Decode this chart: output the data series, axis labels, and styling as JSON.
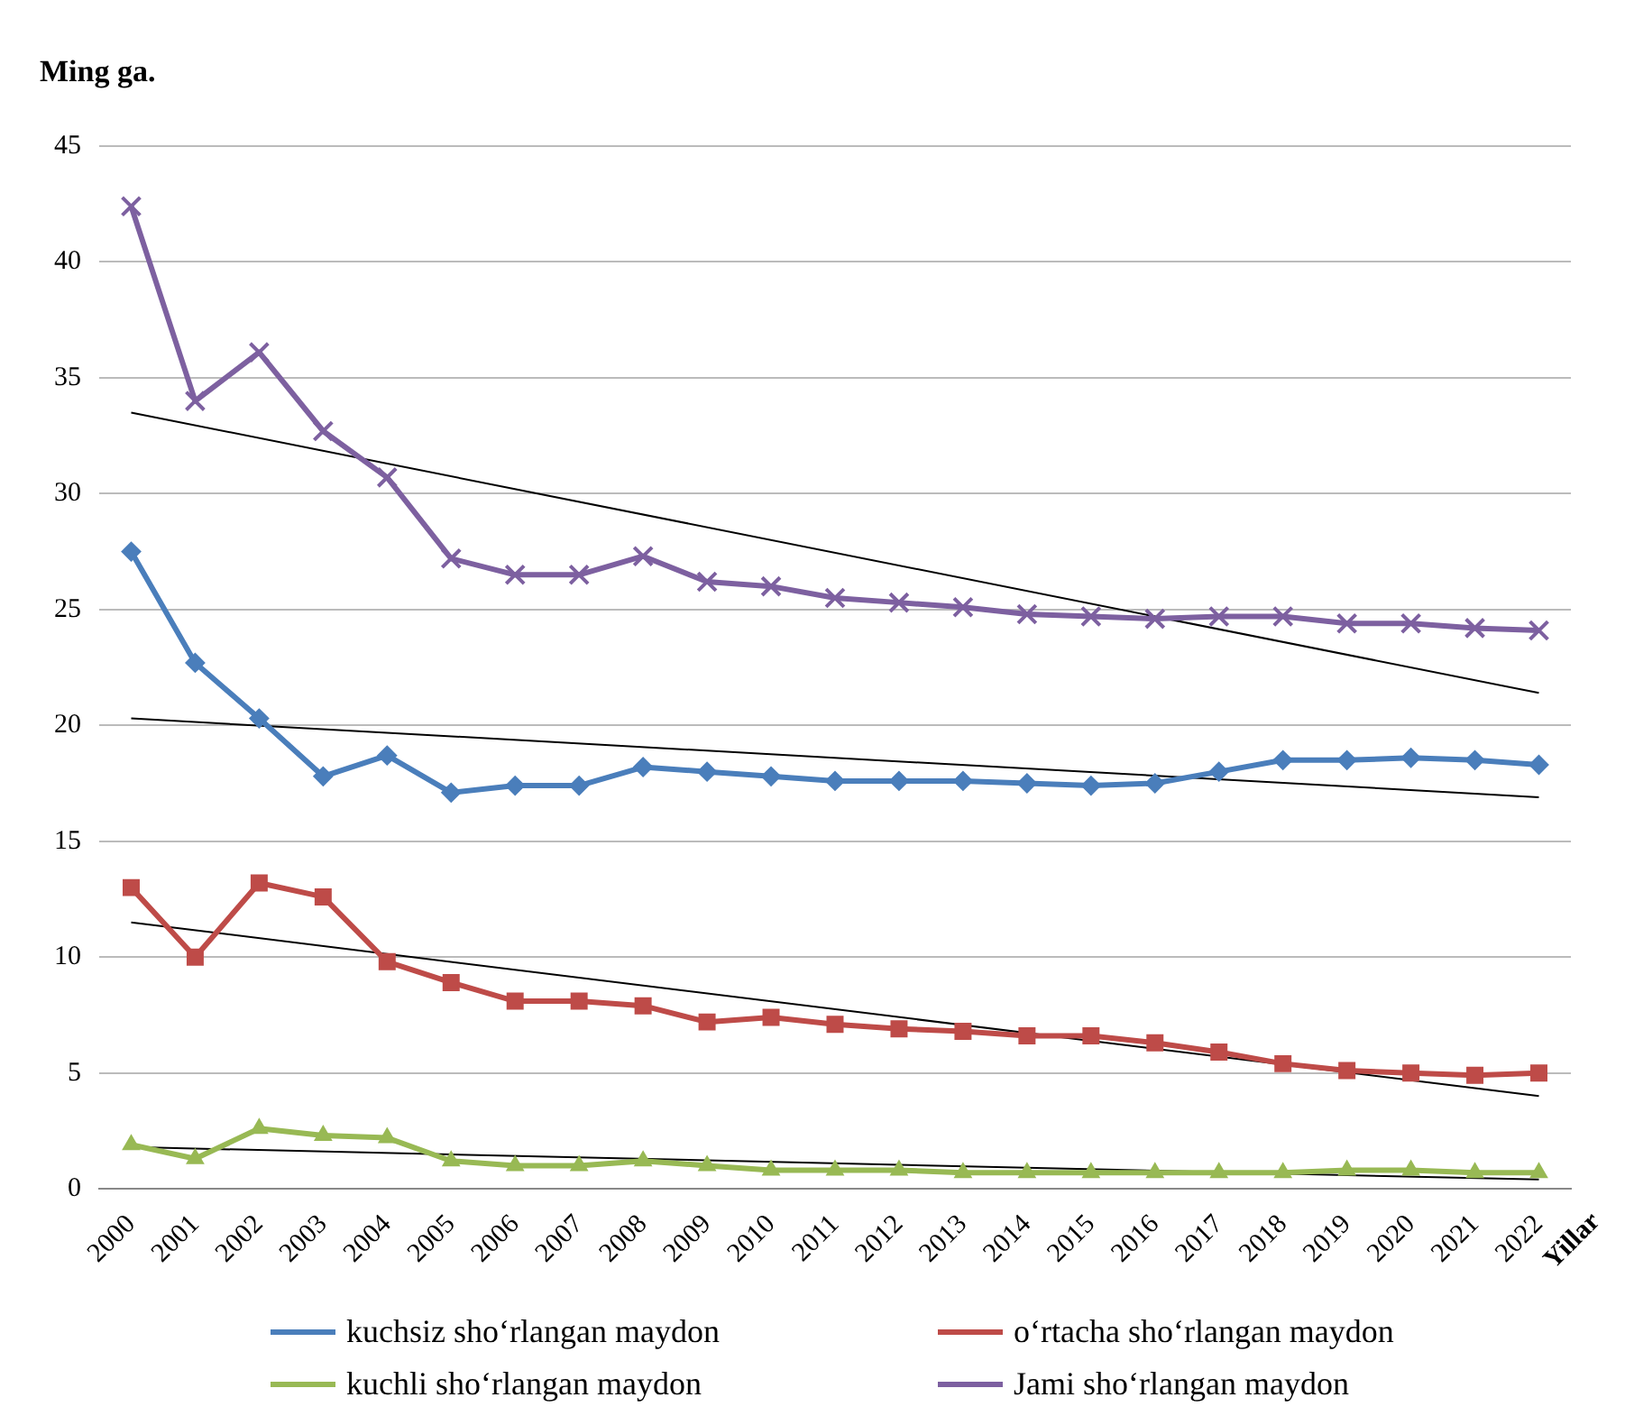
{
  "chart_data": {
    "type": "line",
    "ylabel": "Ming ga.",
    "xlabel": "Yillar",
    "categories": [
      "2000",
      "2001",
      "2002",
      "2003",
      "2004",
      "2005",
      "2006",
      "2007",
      "2008",
      "2009",
      "2010",
      "2011",
      "2012",
      "2013",
      "2014",
      "2015",
      "2016",
      "2017",
      "2018",
      "2019",
      "2020",
      "2021",
      "2022"
    ],
    "ylim": [
      0,
      45
    ],
    "yticks": [
      0,
      5,
      10,
      15,
      20,
      25,
      30,
      35,
      40,
      45
    ],
    "grid": "y",
    "legend": "bottom",
    "series": [
      {
        "name": "kuchsiz sho‘rlangan maydon",
        "color": "#4a7ebb",
        "marker": "diamond",
        "values": [
          27.5,
          22.7,
          20.3,
          17.8,
          18.7,
          17.1,
          17.4,
          17.4,
          18.2,
          18.0,
          17.8,
          17.6,
          17.6,
          17.6,
          17.5,
          17.4,
          17.5,
          18.0,
          18.5,
          18.5,
          18.6,
          18.5,
          18.3
        ]
      },
      {
        "name": "o‘rtacha sho‘rlangan maydon",
        "color": "#be4b48",
        "marker": "square",
        "values": [
          13.0,
          10.0,
          13.2,
          12.6,
          9.8,
          8.9,
          8.1,
          8.1,
          7.9,
          7.2,
          7.4,
          7.1,
          6.9,
          6.8,
          6.6,
          6.6,
          6.3,
          5.9,
          5.4,
          5.1,
          5.0,
          4.9,
          5.0
        ]
      },
      {
        "name": "kuchli sho‘rlangan maydon",
        "color": "#98b954",
        "marker": "triangle",
        "values": [
          1.9,
          1.3,
          2.6,
          2.3,
          2.2,
          1.2,
          1.0,
          1.0,
          1.2,
          1.0,
          0.8,
          0.8,
          0.8,
          0.7,
          0.7,
          0.7,
          0.7,
          0.7,
          0.7,
          0.8,
          0.8,
          0.7,
          0.7
        ]
      },
      {
        "name": "Jami sho‘rlangan maydon",
        "color": "#7d60a0",
        "marker": "cross",
        "values": [
          42.4,
          34.0,
          36.1,
          32.7,
          30.7,
          27.2,
          26.5,
          26.5,
          27.3,
          26.2,
          26.0,
          25.5,
          25.3,
          25.1,
          24.8,
          24.7,
          24.6,
          24.7,
          24.7,
          24.4,
          24.4,
          24.2,
          24.1
        ]
      },
      {
        "type": "line",
        "color": "#000000",
        "marker": "none",
        "values": [
          20.3,
          null,
          null,
          null,
          null,
          null,
          null,
          null,
          null,
          null,
          null,
          null,
          null,
          null,
          null,
          null,
          null,
          null,
          null,
          null,
          null,
          null,
          16.9
        ]
      },
      {
        "type": "line",
        "color": "#000000",
        "marker": "none",
        "values": [
          11.5,
          null,
          null,
          null,
          null,
          null,
          null,
          null,
          null,
          null,
          null,
          null,
          null,
          null,
          null,
          null,
          null,
          null,
          null,
          null,
          null,
          null,
          4.0
        ]
      },
      {
        "type": "line",
        "color": "#000000",
        "marker": "none",
        "values": [
          1.8,
          null,
          null,
          null,
          null,
          null,
          null,
          null,
          null,
          null,
          null,
          null,
          null,
          null,
          null,
          null,
          null,
          null,
          null,
          null,
          null,
          null,
          0.4
        ]
      },
      {
        "type": "line",
        "color": "#000000",
        "marker": "none",
        "values": [
          33.5,
          null,
          null,
          null,
          null,
          null,
          null,
          null,
          null,
          null,
          null,
          null,
          null,
          null,
          null,
          null,
          null,
          null,
          null,
          null,
          null,
          null,
          21.4
        ]
      }
    ]
  }
}
